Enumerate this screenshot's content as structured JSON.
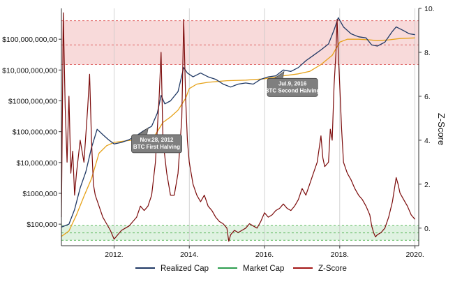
{
  "chart_data": {
    "type": "line",
    "title": "",
    "xlabel": "",
    "ylabel_left": "",
    "ylabel_right": "Z-Score",
    "x_ticks": [
      "2012.",
      "2014.",
      "2016.",
      "2018.",
      "2020."
    ],
    "x_range": [
      2010.6,
      2020.1
    ],
    "y_left_scale": "log",
    "y_left_ticks": [
      "$100,000",
      "$1000,000",
      "$10,000,000",
      "$100,000,000",
      "$1000,000,000",
      "$10,000,000,000",
      "$100,000,000,00"
    ],
    "y_left_range": [
      20000,
      1000000000000
    ],
    "y_right_ticks": [
      "0.",
      "2.",
      "4.",
      "6.",
      "8.",
      "10."
    ],
    "y_right_range": [
      -0.8,
      10
    ],
    "bands": [
      {
        "name": "upper-zone",
        "axis": "left",
        "from": 15000000000,
        "to": 400000000000,
        "mid": 65000000000,
        "color": "#f7d4d4",
        "line_color": "#e06666"
      },
      {
        "name": "lower-zone",
        "axis": "left",
        "from": 30000,
        "to": 90000,
        "mid": 52000,
        "color": "#d9f0dc",
        "line_color": "#5cb85c"
      }
    ],
    "annotations": [
      {
        "date": 2012.91,
        "lines": [
          "Nov.28, 2012",
          "BTC First Halving"
        ]
      },
      {
        "date": 2016.52,
        "lines": [
          "Jul.9, 2016",
          "BTC Second Halving"
        ]
      }
    ],
    "series": [
      {
        "name": "Realized Cap",
        "axis": "left",
        "color": "#1f3864",
        "points": [
          [
            2010.6,
            80000
          ],
          [
            2010.8,
            100000
          ],
          [
            2010.95,
            300000
          ],
          [
            2011.1,
            1500000
          ],
          [
            2011.25,
            5000000
          ],
          [
            2011.4,
            30000000
          ],
          [
            2011.55,
            120000000
          ],
          [
            2011.7,
            80000000
          ],
          [
            2011.85,
            55000000
          ],
          [
            2012.0,
            40000000
          ],
          [
            2012.2,
            45000000
          ],
          [
            2012.4,
            55000000
          ],
          [
            2012.6,
            75000000
          ],
          [
            2012.8,
            110000000
          ],
          [
            2013.0,
            150000000
          ],
          [
            2013.15,
            400000000
          ],
          [
            2013.25,
            1500000000
          ],
          [
            2013.35,
            800000000
          ],
          [
            2013.5,
            1000000000
          ],
          [
            2013.7,
            2000000000
          ],
          [
            2013.85,
            12000000000
          ],
          [
            2013.95,
            8000000000
          ],
          [
            2014.1,
            6000000000
          ],
          [
            2014.3,
            8000000000
          ],
          [
            2014.5,
            6000000000
          ],
          [
            2014.7,
            5000000000
          ],
          [
            2014.9,
            3500000000
          ],
          [
            2015.1,
            2800000000
          ],
          [
            2015.3,
            3500000000
          ],
          [
            2015.5,
            3800000000
          ],
          [
            2015.7,
            3500000000
          ],
          [
            2015.9,
            5000000000
          ],
          [
            2016.1,
            6000000000
          ],
          [
            2016.3,
            6500000000
          ],
          [
            2016.5,
            10000000000
          ],
          [
            2016.7,
            9000000000
          ],
          [
            2016.9,
            12000000000
          ],
          [
            2017.1,
            20000000000
          ],
          [
            2017.3,
            30000000000
          ],
          [
            2017.5,
            45000000000
          ],
          [
            2017.7,
            70000000000
          ],
          [
            2017.85,
            200000000000
          ],
          [
            2017.96,
            500000000000
          ],
          [
            2018.1,
            250000000000
          ],
          [
            2018.3,
            150000000000
          ],
          [
            2018.5,
            120000000000
          ],
          [
            2018.7,
            110000000000
          ],
          [
            2018.85,
            65000000000
          ],
          [
            2019.0,
            60000000000
          ],
          [
            2019.2,
            80000000000
          ],
          [
            2019.4,
            180000000000
          ],
          [
            2019.5,
            250000000000
          ],
          [
            2019.7,
            190000000000
          ],
          [
            2019.85,
            150000000000
          ],
          [
            2020.0,
            140000000000
          ]
        ]
      },
      {
        "name": "Market Cap",
        "axis": "left",
        "color": "#e6a117",
        "points": [
          [
            2010.6,
            40000
          ],
          [
            2010.8,
            60000
          ],
          [
            2011.0,
            200000
          ],
          [
            2011.2,
            800000
          ],
          [
            2011.4,
            3000000
          ],
          [
            2011.6,
            20000000
          ],
          [
            2011.8,
            35000000
          ],
          [
            2012.0,
            45000000
          ],
          [
            2012.3,
            50000000
          ],
          [
            2012.6,
            55000000
          ],
          [
            2012.9,
            60000000
          ],
          [
            2013.1,
            80000000
          ],
          [
            2013.3,
            200000000
          ],
          [
            2013.5,
            300000000
          ],
          [
            2013.7,
            500000000
          ],
          [
            2013.9,
            1200000000
          ],
          [
            2014.0,
            2500000000
          ],
          [
            2014.2,
            3500000000
          ],
          [
            2014.5,
            4000000000
          ],
          [
            2014.8,
            4300000000
          ],
          [
            2015.0,
            4500000000
          ],
          [
            2015.5,
            4700000000
          ],
          [
            2016.0,
            5200000000
          ],
          [
            2016.5,
            6500000000
          ],
          [
            2016.9,
            7500000000
          ],
          [
            2017.2,
            9000000000
          ],
          [
            2017.5,
            15000000000
          ],
          [
            2017.8,
            30000000000
          ],
          [
            2018.0,
            80000000000
          ],
          [
            2018.2,
            100000000000
          ],
          [
            2018.5,
            100000000000
          ],
          [
            2018.8,
            95000000000
          ],
          [
            2019.0,
            90000000000
          ],
          [
            2019.3,
            95000000000
          ],
          [
            2019.6,
            105000000000
          ],
          [
            2020.0,
            110000000000
          ]
        ]
      },
      {
        "name": "Z-Score",
        "axis": "right",
        "color": "#7b0a0a",
        "points": [
          [
            2010.6,
            0.5
          ],
          [
            2010.65,
            9.8
          ],
          [
            2010.7,
            5.5
          ],
          [
            2010.75,
            3.0
          ],
          [
            2010.8,
            6.0
          ],
          [
            2010.85,
            2.5
          ],
          [
            2010.9,
            3.5
          ],
          [
            2010.95,
            1.5
          ],
          [
            2011.0,
            2.5
          ],
          [
            2011.1,
            4.0
          ],
          [
            2011.2,
            3.0
          ],
          [
            2011.3,
            5.5
          ],
          [
            2011.35,
            7.0
          ],
          [
            2011.4,
            4.0
          ],
          [
            2011.45,
            2.0
          ],
          [
            2011.5,
            1.5
          ],
          [
            2011.6,
            1.0
          ],
          [
            2011.7,
            0.5
          ],
          [
            2011.8,
            0.2
          ],
          [
            2011.9,
            -0.1
          ],
          [
            2012.0,
            -0.5
          ],
          [
            2012.1,
            -0.3
          ],
          [
            2012.2,
            -0.1
          ],
          [
            2012.3,
            0.0
          ],
          [
            2012.4,
            0.1
          ],
          [
            2012.5,
            0.3
          ],
          [
            2012.6,
            0.5
          ],
          [
            2012.7,
            1.0
          ],
          [
            2012.8,
            0.8
          ],
          [
            2012.9,
            1.0
          ],
          [
            2013.0,
            1.5
          ],
          [
            2013.1,
            3.0
          ],
          [
            2013.2,
            6.0
          ],
          [
            2013.25,
            8.0
          ],
          [
            2013.3,
            4.0
          ],
          [
            2013.4,
            2.5
          ],
          [
            2013.5,
            1.5
          ],
          [
            2013.6,
            1.5
          ],
          [
            2013.7,
            2.5
          ],
          [
            2013.8,
            5.0
          ],
          [
            2013.85,
            9.5
          ],
          [
            2013.9,
            6.0
          ],
          [
            2013.95,
            4.0
          ],
          [
            2014.0,
            3.0
          ],
          [
            2014.1,
            2.0
          ],
          [
            2014.2,
            1.5
          ],
          [
            2014.3,
            1.2
          ],
          [
            2014.4,
            1.5
          ],
          [
            2014.5,
            1.0
          ],
          [
            2014.6,
            0.8
          ],
          [
            2014.7,
            0.5
          ],
          [
            2014.8,
            0.3
          ],
          [
            2014.9,
            0.2
          ],
          [
            2015.0,
            0.0
          ],
          [
            2015.05,
            -0.6
          ],
          [
            2015.1,
            -0.3
          ],
          [
            2015.2,
            -0.1
          ],
          [
            2015.3,
            -0.2
          ],
          [
            2015.4,
            -0.1
          ],
          [
            2015.5,
            0.0
          ],
          [
            2015.6,
            0.2
          ],
          [
            2015.7,
            0.1
          ],
          [
            2015.8,
            0.0
          ],
          [
            2015.9,
            0.3
          ],
          [
            2016.0,
            0.7
          ],
          [
            2016.1,
            0.5
          ],
          [
            2016.2,
            0.6
          ],
          [
            2016.3,
            0.8
          ],
          [
            2016.4,
            0.9
          ],
          [
            2016.5,
            1.1
          ],
          [
            2016.6,
            0.9
          ],
          [
            2016.7,
            0.8
          ],
          [
            2016.8,
            1.0
          ],
          [
            2016.9,
            1.3
          ],
          [
            2017.0,
            1.8
          ],
          [
            2017.1,
            1.5
          ],
          [
            2017.2,
            2.0
          ],
          [
            2017.3,
            2.5
          ],
          [
            2017.4,
            3.0
          ],
          [
            2017.5,
            4.2
          ],
          [
            2017.55,
            3.2
          ],
          [
            2017.6,
            2.8
          ],
          [
            2017.7,
            3.0
          ],
          [
            2017.75,
            4.5
          ],
          [
            2017.8,
            4.0
          ],
          [
            2017.85,
            6.5
          ],
          [
            2017.9,
            8.0
          ],
          [
            2017.93,
            9.5
          ],
          [
            2017.96,
            8.0
          ],
          [
            2018.0,
            6.5
          ],
          [
            2018.05,
            4.5
          ],
          [
            2018.1,
            3.0
          ],
          [
            2018.2,
            2.5
          ],
          [
            2018.3,
            2.2
          ],
          [
            2018.4,
            1.8
          ],
          [
            2018.5,
            1.5
          ],
          [
            2018.6,
            1.3
          ],
          [
            2018.7,
            1.0
          ],
          [
            2018.8,
            0.6
          ],
          [
            2018.85,
            0.1
          ],
          [
            2018.9,
            -0.2
          ],
          [
            2018.95,
            -0.4
          ],
          [
            2019.0,
            -0.3
          ],
          [
            2019.1,
            -0.2
          ],
          [
            2019.2,
            0.0
          ],
          [
            2019.3,
            0.5
          ],
          [
            2019.4,
            1.2
          ],
          [
            2019.5,
            2.3
          ],
          [
            2019.55,
            2.0
          ],
          [
            2019.6,
            1.6
          ],
          [
            2019.7,
            1.3
          ],
          [
            2019.8,
            1.0
          ],
          [
            2019.9,
            0.6
          ],
          [
            2020.0,
            0.4
          ]
        ]
      }
    ],
    "legend": {
      "position": "bottom",
      "items": [
        {
          "label": "Realized Cap",
          "color": "#1f3864"
        },
        {
          "label": "Market Cap",
          "color": "#2e9e4f"
        },
        {
          "label": "Z-Score",
          "color": "#a31515"
        }
      ]
    },
    "grid": {
      "x_major": true,
      "y_major": false
    },
    "colors": {
      "band_upper_fill": "#f7d4d4",
      "band_lower_fill": "#d9f0dc",
      "annotation_fill": "#7f7f7f",
      "annotation_border": "#404040"
    }
  }
}
